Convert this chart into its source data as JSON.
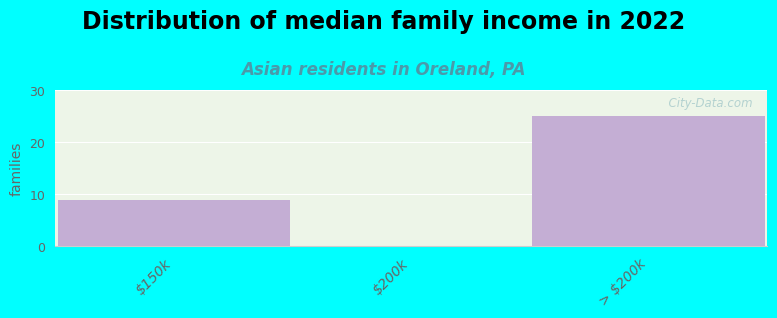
{
  "title": "Distribution of median family income in 2022",
  "subtitle": "Asian residents in Oreland, PA",
  "categories": [
    "$150k",
    "$200k",
    "> $200k"
  ],
  "values": [
    9,
    0,
    25
  ],
  "bar_color": "#c4aed4",
  "background_color": "#00ffff",
  "plot_bg_color": "#edf5e8",
  "ylabel": "families",
  "ylim": [
    0,
    30
  ],
  "yticks": [
    0,
    10,
    20,
    30
  ],
  "title_fontsize": 17,
  "subtitle_fontsize": 12,
  "watermark": "  City-Data.com",
  "bar_width": 0.98,
  "xlabel_rotation": 45,
  "grid_color": "#ffffff",
  "spine_color": "#cccccc",
  "tick_label_color": "#666666",
  "ylabel_color": "#666666"
}
